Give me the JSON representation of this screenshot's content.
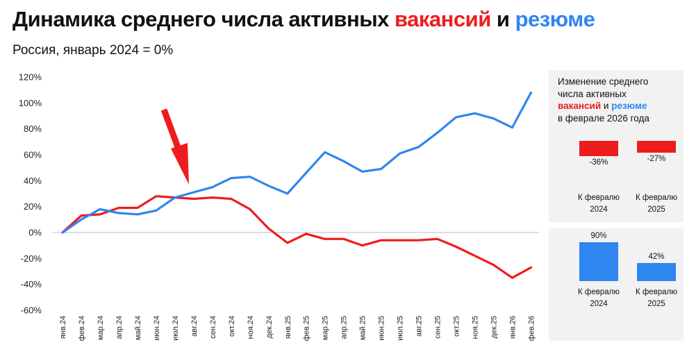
{
  "title": {
    "part1": "Динамика среднего числа активных ",
    "vac": "вакансий",
    "and": " и ",
    "res": "резюме"
  },
  "subtitle": "Россия, январь 2024 = 0%",
  "colors": {
    "vacancies": "#ee1c1c",
    "resumes": "#2f86f0",
    "panel_bg": "#f2f2f2",
    "arrow": "#ee1c1c"
  },
  "chart_data": {
    "type": "line",
    "title": "Динамика среднего числа активных вакансий и резюме",
    "subtitle": "Россия, январь 2024 = 0%",
    "x": [
      "янв.24",
      "фев.24",
      "мар.24",
      "апр.24",
      "май.24",
      "июн.24",
      "июл.24",
      "авг.24",
      "сен.24",
      "окт.24",
      "ноя.24",
      "дек.24",
      "янв.25",
      "фев.25",
      "мар.25",
      "апр.25",
      "май.25",
      "июн.25",
      "июл.25",
      "авг.25",
      "сен.25",
      "окт.25",
      "ноя.25",
      "дек.25",
      "янв.26",
      "фев.26"
    ],
    "y_ticks": [
      "120%",
      "100%",
      "80%",
      "60%",
      "40%",
      "20%",
      "0%",
      "-20%",
      "-40%",
      "-60%"
    ],
    "ylim": [
      -60,
      120
    ],
    "series": [
      {
        "key": "vacancies",
        "color": "#ee1c1c",
        "values": [
          0,
          13,
          14,
          19,
          19,
          28,
          27,
          26,
          27,
          26,
          18,
          3,
          -8,
          -1,
          -5,
          -5,
          -10,
          -6,
          -6,
          -6,
          -5,
          -11,
          -18,
          -25,
          -35,
          -27
        ]
      },
      {
        "key": "resumes",
        "color": "#2f86f0",
        "values": [
          0,
          10,
          18,
          15,
          14,
          17,
          27,
          31,
          35,
          42,
          43,
          36,
          30,
          46,
          62,
          55,
          47,
          49,
          61,
          66,
          77,
          89,
          92,
          88,
          81,
          108
        ]
      }
    ],
    "annotation": "red arrow pointing at авг.24"
  },
  "panel": {
    "line1": "Изменение среднего",
    "line2": "числа активных",
    "vac": "вакансий",
    "and": " и ",
    "res": "резюме",
    "line4": "в феврале 2026 года",
    "vacancy_bars": [
      {
        "value": -36,
        "label": "-36%",
        "caption1": "К февралю",
        "caption2": "2024"
      },
      {
        "value": -27,
        "label": "-27%",
        "caption1": "К февралю",
        "caption2": "2025"
      }
    ],
    "resume_bars": [
      {
        "value": 90,
        "label": "90%",
        "caption1": "К февралю",
        "caption2": "2024"
      },
      {
        "value": 42,
        "label": "42%",
        "caption1": "К февралю",
        "caption2": "2025"
      }
    ]
  }
}
